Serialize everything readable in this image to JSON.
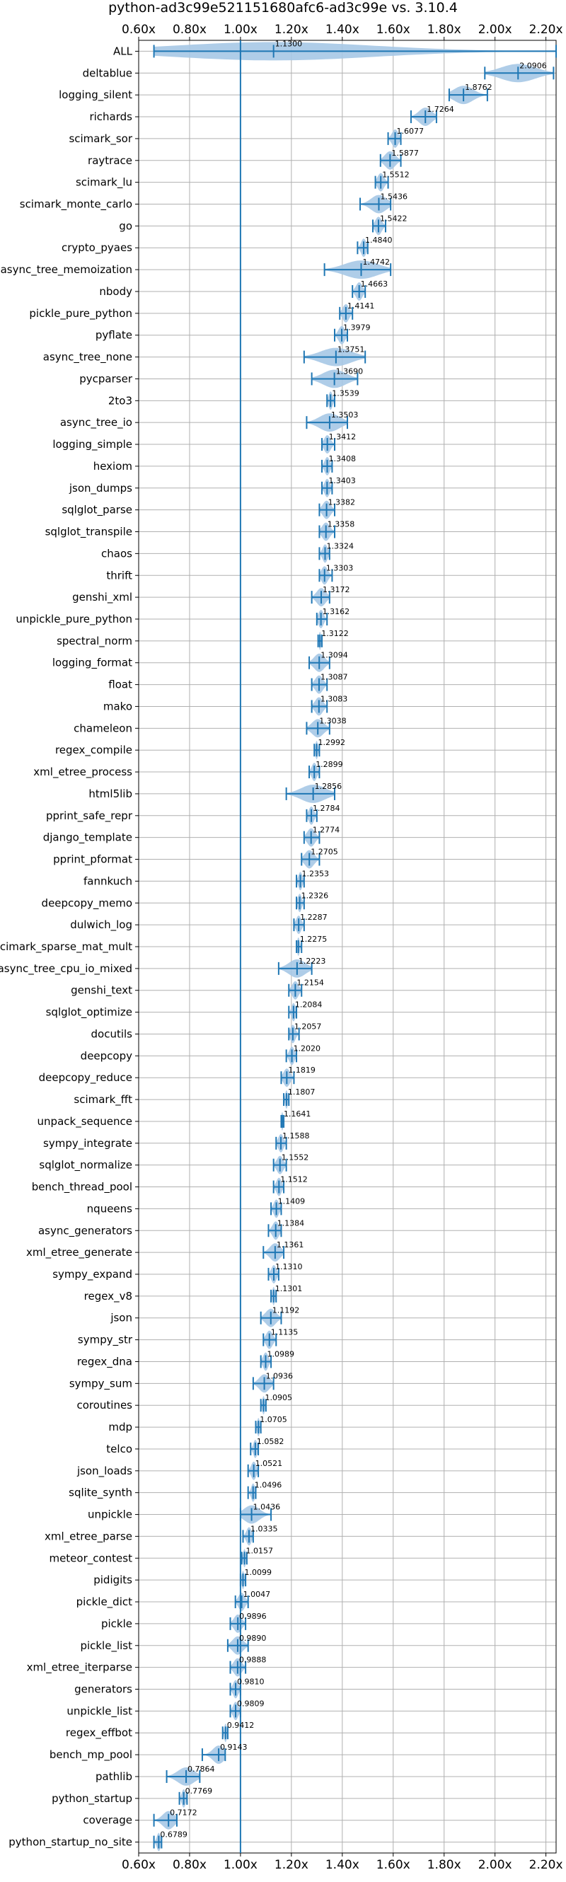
{
  "chart_data": {
    "type": "violin",
    "orientation": "horizontal",
    "title": "python-ad3c99e521151680afc6-ad3c99e vs. 3.10.4",
    "xlabel": "",
    "ylabel": "",
    "xlim": [
      0.6,
      2.24
    ],
    "x_ticks": [
      0.6,
      0.8,
      1.0,
      1.2,
      1.4,
      1.6,
      1.8,
      2.0,
      2.2
    ],
    "x_tick_labels": [
      "0.60x",
      "0.80x",
      "1.00x",
      "1.20x",
      "1.40x",
      "1.60x",
      "1.80x",
      "2.00x",
      "2.20x"
    ],
    "reference_line": 1.0,
    "grid": true,
    "colors": {
      "violin": "#a6c8e6",
      "line": "#1f77b4",
      "grid": "#b0b0b0"
    },
    "categories": [
      "ALL",
      "deltablue",
      "logging_silent",
      "richards",
      "scimark_sor",
      "raytrace",
      "scimark_lu",
      "scimark_monte_carlo",
      "go",
      "crypto_pyaes",
      "async_tree_memoization",
      "nbody",
      "pickle_pure_python",
      "pyflate",
      "async_tree_none",
      "pycparser",
      "2to3",
      "async_tree_io",
      "logging_simple",
      "hexiom",
      "json_dumps",
      "sqlglot_parse",
      "sqlglot_transpile",
      "chaos",
      "thrift",
      "genshi_xml",
      "unpickle_pure_python",
      "spectral_norm",
      "logging_format",
      "float",
      "mako",
      "chameleon",
      "regex_compile",
      "xml_etree_process",
      "html5lib",
      "pprint_safe_repr",
      "django_template",
      "pprint_pformat",
      "fannkuch",
      "deepcopy_memo",
      "dulwich_log",
      "scimark_sparse_mat_mult",
      "async_tree_cpu_io_mixed",
      "genshi_text",
      "sqlglot_optimize",
      "docutils",
      "deepcopy",
      "deepcopy_reduce",
      "scimark_fft",
      "unpack_sequence",
      "sympy_integrate",
      "sqlglot_normalize",
      "bench_thread_pool",
      "nqueens",
      "async_generators",
      "xml_etree_generate",
      "sympy_expand",
      "regex_v8",
      "json",
      "sympy_str",
      "regex_dna",
      "sympy_sum",
      "coroutines",
      "mdp",
      "telco",
      "json_loads",
      "sqlite_synth",
      "unpickle",
      "xml_etree_parse",
      "meteor_contest",
      "pidigits",
      "pickle_dict",
      "pickle",
      "pickle_list",
      "xml_etree_iterparse",
      "generators",
      "unpickle_list",
      "regex_effbot",
      "bench_mp_pool",
      "pathlib",
      "python_startup",
      "coverage",
      "python_startup_no_site"
    ],
    "values": [
      1.13,
      2.0906,
      1.8762,
      1.7264,
      1.6077,
      1.5877,
      1.5512,
      1.5436,
      1.5422,
      1.484,
      1.4742,
      1.4663,
      1.4141,
      1.3979,
      1.3751,
      1.369,
      1.3539,
      1.3503,
      1.3412,
      1.3408,
      1.3403,
      1.3382,
      1.3358,
      1.3324,
      1.3303,
      1.3172,
      1.3162,
      1.3122,
      1.3094,
      1.3087,
      1.3083,
      1.3038,
      1.2992,
      1.2899,
      1.2856,
      1.2784,
      1.2774,
      1.2705,
      1.2353,
      1.2326,
      1.2287,
      1.2275,
      1.2223,
      1.2154,
      1.2084,
      1.2057,
      1.202,
      1.1819,
      1.1807,
      1.1641,
      1.1588,
      1.1552,
      1.1512,
      1.1409,
      1.1384,
      1.1361,
      1.131,
      1.1301,
      1.1192,
      1.1135,
      1.0989,
      1.0936,
      1.0905,
      1.0705,
      1.0582,
      1.0521,
      1.0496,
      1.0436,
      1.0335,
      1.0157,
      1.0099,
      1.0047,
      0.9896,
      0.989,
      0.9888,
      0.981,
      0.9809,
      0.9412,
      0.9143,
      0.7864,
      0.7769,
      0.7172,
      0.6789
    ],
    "value_labels": [
      "1.1300",
      "2.0906",
      "1.8762",
      "1.7264",
      "1.6077",
      "1.5877",
      "1.5512",
      "1.5436",
      "1.5422",
      "1.4840",
      "1.4742",
      "1.4663",
      "1.4141",
      "1.3979",
      "1.3751",
      "1.3690",
      "1.3539",
      "1.3503",
      "1.3412",
      "1.3408",
      "1.3403",
      "1.3382",
      "1.3358",
      "1.3324",
      "1.3303",
      "1.3172",
      "1.3162",
      "1.3122",
      "1.3094",
      "1.3087",
      "1.3083",
      "1.3038",
      "1.2992",
      "1.2899",
      "1.2856",
      "1.2784",
      "1.2774",
      "1.2705",
      "1.2353",
      "1.2326",
      "1.2287",
      "1.2275",
      "1.2223",
      "1.2154",
      "1.2084",
      "1.2057",
      "1.2020",
      "1.1819",
      "1.1807",
      "1.1641",
      "1.1588",
      "1.1552",
      "1.1512",
      "1.1409",
      "1.1384",
      "1.1361",
      "1.1310",
      "1.1301",
      "1.1192",
      "1.1135",
      "1.0989",
      "1.0936",
      "1.0905",
      "1.0705",
      "1.0582",
      "1.0521",
      "1.0496",
      "1.0436",
      "1.0335",
      "1.0157",
      "1.0099",
      "1.0047",
      "0.9896",
      "0.9890",
      "0.9888",
      "0.9810",
      "0.9809",
      "0.9412",
      "0.9143",
      "0.7864",
      "0.7769",
      "0.7172",
      "0.6789"
    ],
    "ranges": [
      [
        0.66,
        2.24
      ],
      [
        1.96,
        2.23
      ],
      [
        1.82,
        1.97
      ],
      [
        1.67,
        1.77
      ],
      [
        1.58,
        1.63
      ],
      [
        1.55,
        1.63
      ],
      [
        1.53,
        1.58
      ],
      [
        1.47,
        1.59
      ],
      [
        1.52,
        1.57
      ],
      [
        1.46,
        1.5
      ],
      [
        1.33,
        1.59
      ],
      [
        1.44,
        1.49
      ],
      [
        1.39,
        1.44
      ],
      [
        1.37,
        1.42
      ],
      [
        1.25,
        1.49
      ],
      [
        1.28,
        1.46
      ],
      [
        1.34,
        1.37
      ],
      [
        1.26,
        1.42
      ],
      [
        1.32,
        1.37
      ],
      [
        1.32,
        1.36
      ],
      [
        1.32,
        1.36
      ],
      [
        1.31,
        1.37
      ],
      [
        1.31,
        1.37
      ],
      [
        1.31,
        1.35
      ],
      [
        1.31,
        1.36
      ],
      [
        1.28,
        1.35
      ],
      [
        1.3,
        1.34
      ],
      [
        1.305,
        1.32
      ],
      [
        1.27,
        1.35
      ],
      [
        1.28,
        1.34
      ],
      [
        1.28,
        1.34
      ],
      [
        1.26,
        1.35
      ],
      [
        1.29,
        1.31
      ],
      [
        1.27,
        1.31
      ],
      [
        1.18,
        1.37
      ],
      [
        1.26,
        1.3
      ],
      [
        1.25,
        1.31
      ],
      [
        1.24,
        1.31
      ],
      [
        1.22,
        1.25
      ],
      [
        1.22,
        1.25
      ],
      [
        1.21,
        1.25
      ],
      [
        1.22,
        1.24
      ],
      [
        1.15,
        1.28
      ],
      [
        1.19,
        1.24
      ],
      [
        1.19,
        1.22
      ],
      [
        1.19,
        1.23
      ],
      [
        1.18,
        1.22
      ],
      [
        1.16,
        1.21
      ],
      [
        1.17,
        1.19
      ],
      [
        1.16,
        1.17
      ],
      [
        1.14,
        1.18
      ],
      [
        1.13,
        1.18
      ],
      [
        1.13,
        1.17
      ],
      [
        1.12,
        1.16
      ],
      [
        1.11,
        1.16
      ],
      [
        1.09,
        1.17
      ],
      [
        1.11,
        1.15
      ],
      [
        1.12,
        1.14
      ],
      [
        1.08,
        1.16
      ],
      [
        1.09,
        1.14
      ],
      [
        1.08,
        1.12
      ],
      [
        1.05,
        1.13
      ],
      [
        1.08,
        1.1
      ],
      [
        1.06,
        1.08
      ],
      [
        1.04,
        1.07
      ],
      [
        1.03,
        1.07
      ],
      [
        1.03,
        1.06
      ],
      [
        1.0,
        1.12
      ],
      [
        1.01,
        1.05
      ],
      [
        1.005,
        1.025
      ],
      [
        1.0,
        1.02
      ],
      [
        0.98,
        1.03
      ],
      [
        0.96,
        1.02
      ],
      [
        0.95,
        1.03
      ],
      [
        0.96,
        1.02
      ],
      [
        0.96,
        1.0
      ],
      [
        0.96,
        1.0
      ],
      [
        0.93,
        0.95
      ],
      [
        0.85,
        0.94
      ],
      [
        0.71,
        0.84
      ],
      [
        0.76,
        0.79
      ],
      [
        0.66,
        0.75
      ],
      [
        0.66,
        0.69
      ]
    ]
  }
}
